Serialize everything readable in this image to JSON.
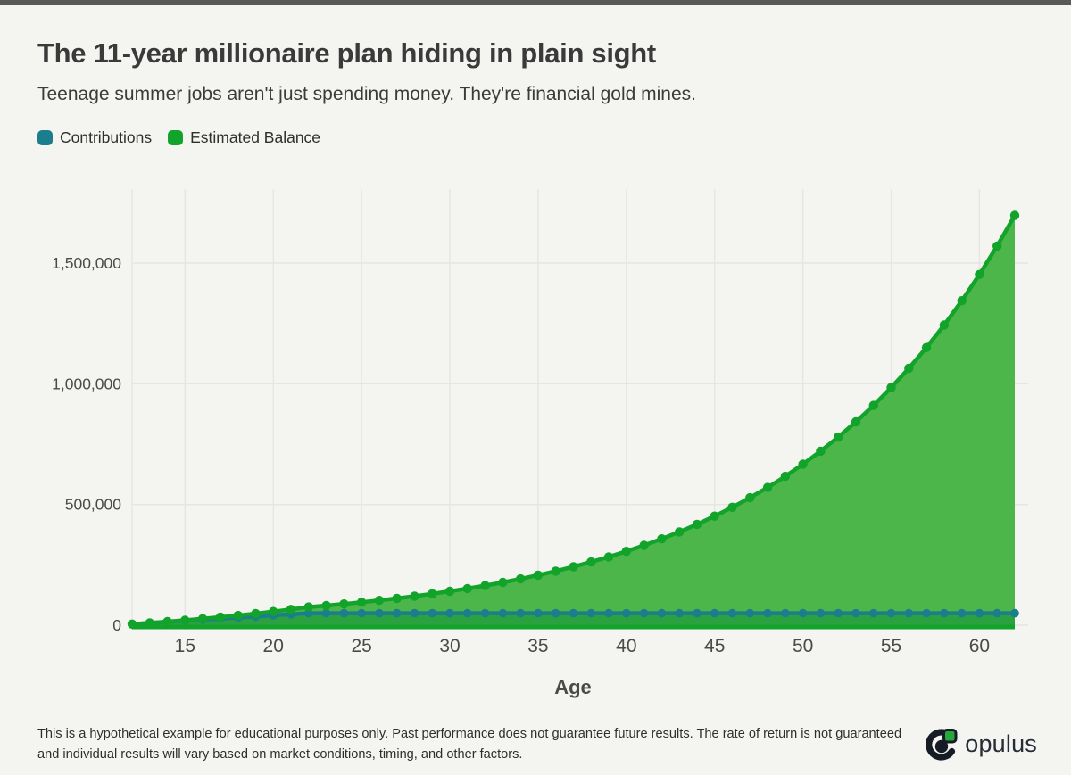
{
  "page": {
    "title": "The 11-year millionaire plan hiding in plain sight",
    "subtitle": "Teenage summer jobs aren't just spending money. They're financial gold mines.",
    "disclaimer": "This is a hypothetical example for educational purposes only. Past performance does not guarantee future results. The rate of return is not guaranteed and individual results will vary based on market conditions, timing, and other factors.",
    "brand_name": "opulus"
  },
  "legend": [
    {
      "label": "Contributions",
      "color": "#1b7e8e"
    },
    {
      "label": "Estimated Balance",
      "color": "#12a32a"
    }
  ],
  "colors": {
    "background": "#f4f4f1",
    "topbar": "#58585a",
    "grid": "#e5e5e2",
    "tick_text": "#4a4a4a",
    "contributions_line": "#1b7e8e",
    "contributions_fill": "#2ba23f",
    "balance_line": "#12a32a",
    "balance_fill": "#4cb64a"
  },
  "chart_data": {
    "type": "area",
    "title": "The 11-year millionaire plan hiding in plain sight",
    "xlabel": "Age",
    "ylabel": "",
    "xlim": [
      12,
      62
    ],
    "ylim": [
      0,
      1750000
    ],
    "grid": true,
    "legend_position": "top-left",
    "x_ticks": [
      15,
      20,
      25,
      30,
      35,
      40,
      45,
      50,
      55,
      60
    ],
    "y_ticks": [
      0,
      500000,
      1000000,
      1500000
    ],
    "y_tick_labels": [
      "0",
      "500,000",
      "1,000,000",
      "1,500,000"
    ],
    "x": [
      12,
      13,
      14,
      15,
      16,
      17,
      18,
      19,
      20,
      21,
      22,
      23,
      24,
      25,
      26,
      27,
      28,
      29,
      30,
      31,
      32,
      33,
      34,
      35,
      36,
      37,
      38,
      39,
      40,
      41,
      42,
      43,
      44,
      45,
      46,
      47,
      48,
      49,
      50,
      51,
      52,
      53,
      54,
      55,
      56,
      57,
      58,
      59,
      60,
      61,
      62
    ],
    "series": [
      {
        "name": "Contributions",
        "values": [
          4500,
          9000,
          13500,
          18000,
          22500,
          27000,
          31500,
          36000,
          40500,
          45000,
          49500,
          49500,
          49500,
          49500,
          49500,
          49500,
          49500,
          49500,
          49500,
          49500,
          49500,
          49500,
          49500,
          49500,
          49500,
          49500,
          49500,
          49500,
          49500,
          49500,
          49500,
          49500,
          49500,
          49500,
          49500,
          49500,
          49500,
          49500,
          49500,
          49500,
          49500,
          49500,
          49500,
          49500,
          49500,
          49500,
          49500,
          49500,
          49500,
          49500,
          49500
        ]
      },
      {
        "name": "Estimated Balance",
        "values": [
          4500,
          9365,
          14623,
          20308,
          26453,
          33096,
          40277,
          48039,
          56430,
          65501,
          75307,
          81407,
          88001,
          95129,
          102835,
          111164,
          120169,
          129902,
          140424,
          151799,
          164094,
          177386,
          191754,
          207286,
          224076,
          242226,
          261846,
          283056,
          305983,
          330768,
          357560,
          386523,
          417831,
          451675,
          488261,
          527810,
          570563,
          616779,
          666738,
          720744,
          779124,
          842233,
          910454,
          984201,
          1063921,
          1150098,
          1243256,
          1343960,
          1452821,
          1570500,
          1697710
        ]
      }
    ]
  }
}
